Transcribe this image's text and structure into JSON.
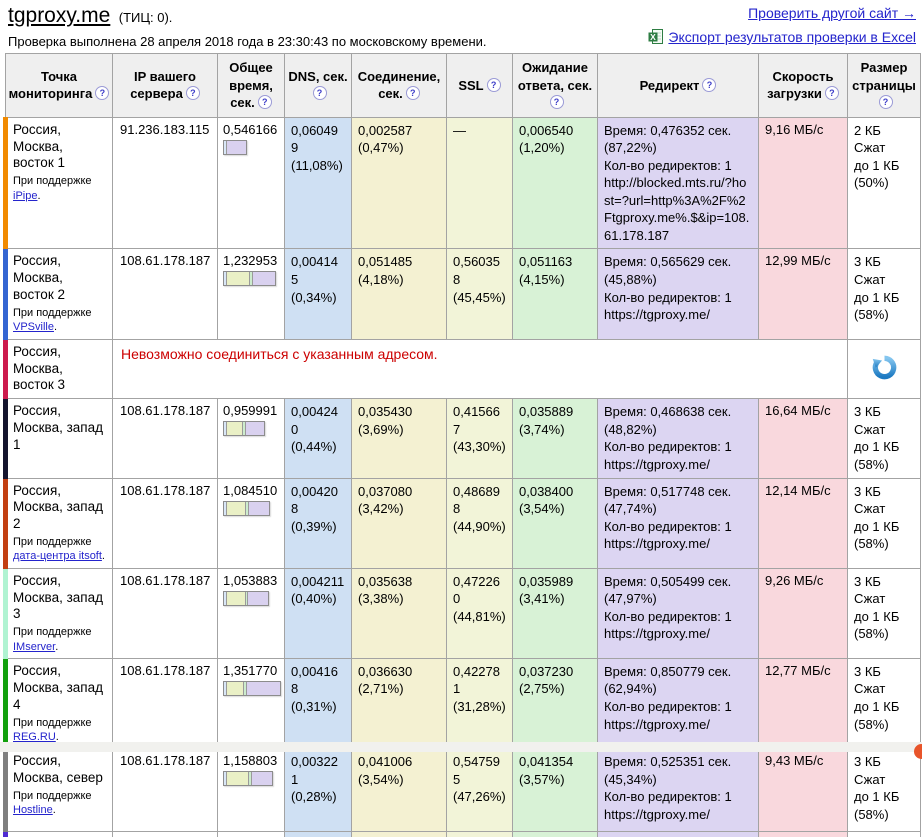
{
  "page": {
    "title": "tgproxy.me",
    "tic_label": "(ТИЦ: 0).",
    "subtitle": "Проверка выполнена 28 апреля 2018 года в 23:30:43 по московскому времени.",
    "check_another_link": "Проверить другой сайт  →",
    "export_link": "Экспорт результатов проверки в Excel"
  },
  "colors": {
    "link": "#2424cc",
    "error_text": "#cc0000",
    "header_bg": "#efefef",
    "table_border": "#a3a3a3",
    "col_dns": "#cfe0f3",
    "col_conn": "#f4f1d2",
    "col_ssl": "#f2f4d8",
    "col_wait": "#d8f2d6",
    "col_redirect": "#dcd5f2",
    "col_speed": "#f9d8dd",
    "bar_dns": "#d9e7f7",
    "bar_ssl": "#eaf0c6",
    "bar_wait": "#cdeccd",
    "bar_redirect": "#d9d1ef",
    "bottom_strip": "#f1f1ee",
    "corner_dot": "#e8542a"
  },
  "table": {
    "help_glyph": "?",
    "headers": [
      "Точка мониторинга",
      "IP вашего сервера",
      "Общее время, сек.",
      "DNS, сек.",
      "Соединение, сек.",
      "SSL",
      "Ожидание ответа, сек.",
      "Редирект",
      "Скорость загрузки",
      "Размер страницы"
    ],
    "support_prefix": "При поддержке",
    "rows": [
      {
        "type": "data",
        "border_color": "#f18a00",
        "point": {
          "location": "Россия, Москва, восток 1",
          "support_link": "iPipe"
        },
        "ip": "91.236.183.115",
        "total": {
          "value": "0,546166",
          "bar": {
            "width_pct": 40,
            "segments": [
              {
                "part": "dns",
                "pct": 11.6
              },
              {
                "part": "redirect",
                "pct": 88.4
              }
            ]
          }
        },
        "dns": {
          "value": "0,060499",
          "pct": "(11,08%)"
        },
        "conn": {
          "value": "0,002587",
          "pct": "(0,47%)"
        },
        "ssl": {
          "value": "—",
          "pct": null
        },
        "wait": {
          "value": "0,006540",
          "pct": "(1,20%)"
        },
        "redirect_lines": [
          "Время: 0,476352 сек.",
          "(87,22%)",
          "Кол-во редиректов: 1",
          "http://blocked.mts.ru/?host=?url=http%3A%2F%2Ftgproxy.me%.$&ip=108.61.178.187"
        ],
        "speed": "9,16 МБ/с",
        "size_lines": [
          "2 КБ",
          "Сжат",
          "до 1 КБ",
          "(50%)"
        ]
      },
      {
        "type": "data",
        "border_color": "#3465d2",
        "point": {
          "location": "Россия, Москва, восток 2",
          "support_link": "VPSville"
        },
        "ip": "108.61.178.187",
        "total": {
          "value": "1,232953",
          "bar": {
            "width_pct": 91,
            "segments": [
              {
                "part": "dns",
                "pct": 4.5
              },
              {
                "part": "ssl",
                "pct": 45.5
              },
              {
                "part": "wait",
                "pct": 4.2
              },
              {
                "part": "redirect",
                "pct": 45.8
              }
            ]
          }
        },
        "dns": {
          "value": "0,004145",
          "pct": "(0,34%)"
        },
        "conn": {
          "value": "0,051485",
          "pct": "(4,18%)"
        },
        "ssl": {
          "value": "0,560358",
          "pct": "(45,45%)"
        },
        "wait": {
          "value": "0,051163",
          "pct": "(4,15%)"
        },
        "redirect_lines": [
          "Время: 0,565629 сек.",
          "(45,88%)",
          "Кол-во редиректов: 1",
          "https://tgproxy.me/"
        ],
        "speed": "12,99 МБ/с",
        "size_lines": [
          "3 КБ",
          "Сжат",
          "до 1 КБ",
          "(58%)"
        ]
      },
      {
        "type": "error",
        "border_color": "#cc1a4d",
        "point": {
          "location": "Россия, Москва, восток 3",
          "support_link": null
        },
        "error": "Невозможно соединиться с указанным адресом."
      },
      {
        "type": "data",
        "border_color": "#14142e",
        "point": {
          "location": "Россия, Москва, запад 1",
          "support_link": null
        },
        "ip": "108.61.178.187",
        "total": {
          "value": "0,959991",
          "bar": {
            "width_pct": 71,
            "segments": [
              {
                "part": "dns",
                "pct": 4.1
              },
              {
                "part": "ssl",
                "pct": 43.3
              },
              {
                "part": "wait",
                "pct": 3.7
              },
              {
                "part": "redirect",
                "pct": 48.9
              }
            ]
          }
        },
        "dns": {
          "value": "0,004240",
          "pct": "(0,44%)"
        },
        "conn": {
          "value": "0,035430",
          "pct": "(3,69%)"
        },
        "ssl": {
          "value": "0,415667",
          "pct": "(43,30%)"
        },
        "wait": {
          "value": "0,035889",
          "pct": "(3,74%)"
        },
        "redirect_lines": [
          "Время: 0,468638 сек.",
          "(48,82%)",
          "Кол-во редиректов: 1",
          "https://tgproxy.me/"
        ],
        "speed": "16,64 МБ/с",
        "size_lines": [
          "3 КБ",
          "Сжат",
          "до 1 КБ",
          "(58%)"
        ]
      },
      {
        "type": "data",
        "border_color": "#c23f12",
        "point": {
          "location": "Россия, Москва, запад 2",
          "support_link": "дата-центра itsoft"
        },
        "ip": "108.61.178.187",
        "total": {
          "value": "1,084510",
          "bar": {
            "width_pct": 80,
            "segments": [
              {
                "part": "dns",
                "pct": 3.8
              },
              {
                "part": "ssl",
                "pct": 44.9
              },
              {
                "part": "wait",
                "pct": 3.5
              },
              {
                "part": "redirect",
                "pct": 47.8
              }
            ]
          }
        },
        "dns": {
          "value": "0,004208",
          "pct": "(0,39%)"
        },
        "conn": {
          "value": "0,037080",
          "pct": "(3,42%)"
        },
        "ssl": {
          "value": "0,486898",
          "pct": "(44,90%)"
        },
        "wait": {
          "value": "0,038400",
          "pct": "(3,54%)"
        },
        "redirect_lines": [
          "Время: 0,517748 сек.",
          "(47,74%)",
          "Кол-во редиректов: 1",
          "https://tgproxy.me/"
        ],
        "speed": "12,14 МБ/с",
        "size_lines": [
          "3 КБ",
          "Сжат",
          "до 1 КБ",
          "(58%)"
        ]
      },
      {
        "type": "data",
        "border_color": "#b0f3d2",
        "point": {
          "location": "Россия, Москва, запад 3",
          "support_link": "IMserver"
        },
        "ip": "108.61.178.187",
        "total": {
          "value": "1,053883",
          "bar": {
            "width_pct": 78,
            "segments": [
              {
                "part": "dns",
                "pct": 3.8
              },
              {
                "part": "ssl",
                "pct": 44.8
              },
              {
                "part": "wait",
                "pct": 3.4
              },
              {
                "part": "redirect",
                "pct": 48.0
              }
            ]
          }
        },
        "dns": {
          "value": "0,004211",
          "pct": "(0,40%)"
        },
        "conn": {
          "value": "0,035638",
          "pct": "(3,38%)"
        },
        "ssl": {
          "value": "0,472260",
          "pct": "(44,81%)"
        },
        "wait": {
          "value": "0,035989",
          "pct": "(3,41%)"
        },
        "redirect_lines": [
          "Время: 0,505499 сек.",
          "(47,97%)",
          "Кол-во редиректов: 1",
          "https://tgproxy.me/"
        ],
        "speed": "9,26 МБ/с",
        "size_lines": [
          "3 КБ",
          "Сжат",
          "до 1 КБ",
          "(58%)"
        ]
      },
      {
        "type": "data",
        "border_color": "#12a00d",
        "point": {
          "location": "Россия, Москва, запад 4",
          "support_link": "REG.RU"
        },
        "ip": "108.61.178.187",
        "total": {
          "value": "1,351770",
          "bar": {
            "width_pct": 100,
            "segments": [
              {
                "part": "dns",
                "pct": 3.0
              },
              {
                "part": "ssl",
                "pct": 31.3
              },
              {
                "part": "wait",
                "pct": 2.8
              },
              {
                "part": "redirect",
                "pct": 62.9
              }
            ]
          }
        },
        "dns": {
          "value": "0,004168",
          "pct": "(0,31%)"
        },
        "conn": {
          "value": "0,036630",
          "pct": "(2,71%)"
        },
        "ssl": {
          "value": "0,422781",
          "pct": "(31,28%)"
        },
        "wait": {
          "value": "0,037230",
          "pct": "(2,75%)"
        },
        "redirect_lines": [
          "Время: 0,850779 сек.",
          "(62,94%)",
          "Кол-во редиректов: 1",
          "https://tgproxy.me/"
        ],
        "speed": "12,77 МБ/с",
        "size_lines": [
          "3 КБ",
          "Сжат",
          "до 1 КБ",
          "(58%)"
        ]
      },
      {
        "type": "data",
        "border_color": "#7f7f7f",
        "point": {
          "location": "Россия, Москва, север",
          "support_link": "Hostline"
        },
        "ip": "108.61.178.187",
        "total": {
          "value": "1,158803",
          "bar": {
            "width_pct": 86,
            "segments": [
              {
                "part": "dns",
                "pct": 3.8
              },
              {
                "part": "ssl",
                "pct": 47.3
              },
              {
                "part": "wait",
                "pct": 3.6
              },
              {
                "part": "redirect",
                "pct": 45.3
              }
            ]
          }
        },
        "dns": {
          "value": "0,003221",
          "pct": "(0,28%)"
        },
        "conn": {
          "value": "0,041006",
          "pct": "(3,54%)"
        },
        "ssl": {
          "value": "0,547595",
          "pct": "(47,26%)"
        },
        "wait": {
          "value": "0,041354",
          "pct": "(3,57%)"
        },
        "redirect_lines": [
          "Время: 0,525351 сек.",
          "(45,34%)",
          "Кол-во редиректов: 1",
          "https://tgproxy.me/"
        ],
        "speed": "9,43 МБ/с",
        "size_lines": [
          "3 КБ",
          "Сжат",
          "до 1 КБ",
          "(58%)"
        ]
      }
    ],
    "partial_row": {
      "border_color": "#4f2ad2"
    }
  }
}
